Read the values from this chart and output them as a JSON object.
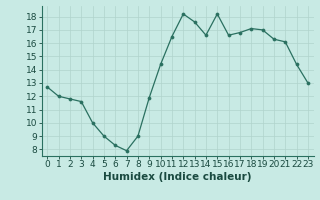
{
  "x": [
    0,
    1,
    2,
    3,
    4,
    5,
    6,
    7,
    8,
    9,
    10,
    11,
    12,
    13,
    14,
    15,
    16,
    17,
    18,
    19,
    20,
    21,
    22,
    23
  ],
  "y": [
    12.7,
    12.0,
    11.8,
    11.6,
    10.0,
    9.0,
    8.3,
    7.9,
    9.0,
    11.9,
    14.4,
    16.5,
    18.2,
    17.6,
    16.6,
    18.2,
    16.6,
    16.8,
    17.1,
    17.0,
    16.3,
    16.1,
    14.4,
    13.0
  ],
  "xlabel": "Humidex (Indice chaleur)",
  "background_color": "#c8eae4",
  "grid_color": "#b0d4cc",
  "line_color": "#2a7060",
  "marker_color": "#2a7060",
  "ylim": [
    7.5,
    18.8
  ],
  "xlim": [
    -0.5,
    23.5
  ],
  "yticks": [
    8,
    9,
    10,
    11,
    12,
    13,
    14,
    15,
    16,
    17,
    18
  ],
  "xticks": [
    0,
    1,
    2,
    3,
    4,
    5,
    6,
    7,
    8,
    9,
    10,
    11,
    12,
    13,
    14,
    15,
    16,
    17,
    18,
    19,
    20,
    21,
    22,
    23
  ],
  "tick_fontsize": 6.5,
  "xlabel_fontsize": 7.5,
  "spine_color": "#2a7060"
}
